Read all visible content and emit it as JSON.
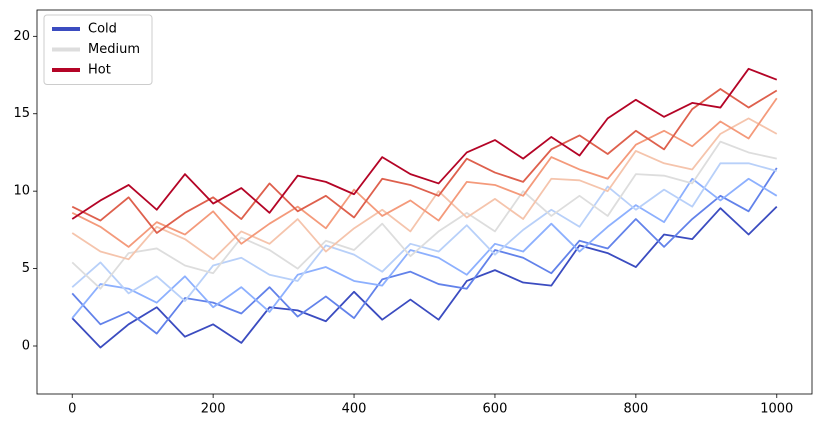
{
  "chart_data": {
    "type": "line",
    "x": [
      0,
      40,
      80,
      120,
      160,
      200,
      240,
      280,
      320,
      360,
      400,
      440,
      480,
      520,
      560,
      600,
      640,
      680,
      720,
      760,
      800,
      840,
      880,
      920,
      960,
      1000
    ],
    "xlim": [
      -50,
      1050
    ],
    "xticks": [
      0,
      200,
      400,
      600,
      800,
      1000
    ],
    "ylim": [
      -3.1,
      21.7
    ],
    "yticks": [
      0,
      5,
      10,
      15,
      20
    ],
    "legend": "upper left",
    "series": [
      {
        "name": "Cold",
        "color": "#3b4cc0",
        "values": [
          1.8,
          -0.1,
          1.4,
          2.5,
          0.6,
          1.4,
          0.2,
          2.5,
          2.3,
          1.6,
          3.5,
          1.7,
          3.0,
          1.7,
          4.2,
          4.9,
          4.1,
          3.9,
          6.5,
          6.0,
          5.1,
          7.2,
          6.9,
          8.9,
          7.2,
          9.0
        ]
      },
      {
        "color": "#6282ea",
        "values": [
          3.4,
          1.4,
          2.2,
          0.8,
          3.1,
          2.8,
          2.1,
          3.8,
          1.9,
          3.2,
          1.8,
          4.3,
          4.8,
          4.0,
          3.7,
          6.2,
          5.7,
          4.7,
          6.8,
          6.3,
          8.2,
          6.4,
          8.2,
          9.7,
          8.7,
          11.5
        ]
      },
      {
        "color": "#8db0fe",
        "values": [
          1.8,
          4.0,
          3.7,
          2.8,
          4.5,
          2.5,
          3.8,
          2.2,
          4.6,
          5.1,
          4.2,
          3.9,
          6.2,
          5.7,
          4.6,
          6.6,
          6.1,
          7.9,
          6.1,
          7.7,
          9.1,
          8.0,
          10.8,
          9.4,
          10.8,
          9.7
        ]
      },
      {
        "color": "#b8d0f9",
        "values": [
          3.8,
          5.4,
          3.4,
          4.5,
          2.9,
          5.2,
          5.7,
          4.6,
          4.2,
          6.5,
          5.9,
          4.8,
          6.6,
          6.1,
          7.8,
          5.9,
          7.5,
          8.8,
          7.7,
          10.3,
          8.8,
          10.1,
          9.0,
          11.8,
          11.8,
          11.3
        ]
      },
      {
        "name": "Medium",
        "color": "#dddddd",
        "values": [
          5.4,
          3.7,
          6.0,
          6.3,
          5.2,
          4.7,
          7.0,
          6.2,
          5.0,
          6.8,
          6.2,
          7.9,
          5.8,
          7.4,
          8.6,
          7.4,
          10.0,
          8.4,
          9.7,
          8.4,
          11.1,
          11.0,
          10.5,
          13.2,
          12.5,
          12.1
        ]
      },
      {
        "color": "#f5c4ac",
        "values": [
          7.3,
          6.1,
          5.6,
          7.7,
          6.9,
          5.6,
          7.4,
          6.6,
          8.2,
          6.1,
          7.6,
          8.8,
          7.4,
          10.0,
          8.3,
          9.5,
          8.2,
          10.8,
          10.7,
          10.0,
          12.6,
          11.8,
          11.4,
          13.7,
          14.7,
          13.7
        ]
      },
      {
        "color": "#f49a7b",
        "values": [
          8.6,
          7.7,
          6.4,
          8.0,
          7.2,
          8.7,
          6.6,
          7.9,
          9.0,
          7.6,
          10.1,
          8.4,
          9.4,
          8.1,
          10.6,
          10.4,
          9.7,
          12.2,
          11.4,
          10.8,
          13.0,
          13.9,
          12.9,
          14.5,
          13.4,
          16.0
        ]
      },
      {
        "color": "#de604d",
        "values": [
          9.0,
          8.1,
          9.6,
          7.3,
          8.6,
          9.6,
          8.2,
          10.5,
          8.7,
          9.7,
          8.3,
          10.8,
          10.4,
          9.7,
          12.1,
          11.2,
          10.6,
          12.7,
          13.6,
          12.4,
          13.9,
          12.7,
          15.3,
          16.6,
          15.4,
          16.5
        ]
      },
      {
        "name": "Hot",
        "color": "#b40426",
        "values": [
          8.2,
          9.4,
          10.4,
          8.8,
          11.1,
          9.2,
          10.2,
          8.6,
          11.0,
          10.6,
          9.8,
          12.2,
          11.1,
          10.5,
          12.5,
          13.3,
          12.1,
          13.5,
          12.3,
          14.7,
          15.9,
          14.8,
          15.7,
          15.4,
          17.9,
          17.2
        ]
      }
    ]
  }
}
